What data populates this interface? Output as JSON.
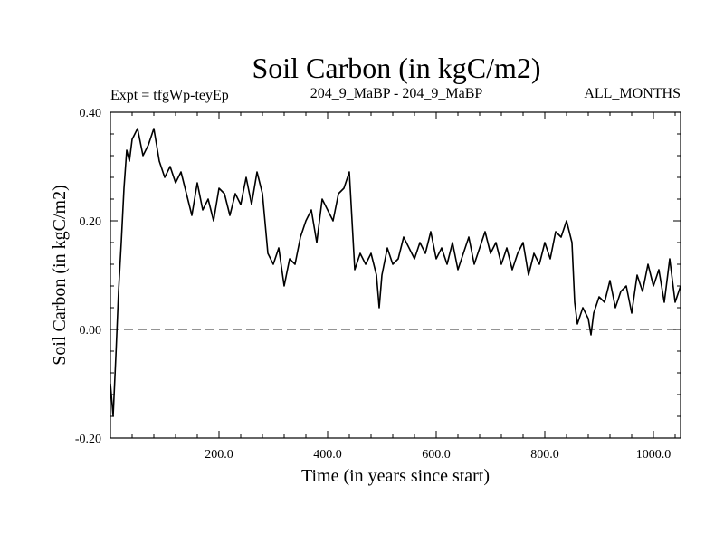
{
  "chart_data": {
    "type": "line",
    "title": "Soil Carbon (in kgC/m2)",
    "subtitle_left": "Expt = tfgWp-teyEp",
    "subtitle_center": "204_9_MaBP - 204_9_MaBP",
    "subtitle_right": "ALL_MONTHS",
    "xlabel": "Time (in years since start)",
    "ylabel": "Soil Carbon (in kgC/m2)",
    "xlim": [
      0,
      1050
    ],
    "ylim": [
      -0.2,
      0.4
    ],
    "x_ticks": [
      200,
      400,
      600,
      800,
      1000
    ],
    "x_tick_labels": [
      "200.0",
      "400.0",
      "600.0",
      "800.0",
      "1000.0"
    ],
    "y_ticks": [
      -0.2,
      0.0,
      0.2,
      0.4
    ],
    "y_tick_labels": [
      "-0.20",
      "0.00",
      "0.20",
      "0.40"
    ],
    "reference_line": 0.0,
    "grid": false,
    "series": [
      {
        "name": "Soil Carbon",
        "color": "#000000",
        "x": [
          0,
          5,
          10,
          15,
          20,
          25,
          30,
          35,
          40,
          50,
          60,
          70,
          80,
          90,
          100,
          110,
          120,
          130,
          140,
          150,
          160,
          170,
          180,
          190,
          200,
          210,
          220,
          230,
          240,
          250,
          260,
          270,
          280,
          290,
          300,
          310,
          320,
          330,
          340,
          350,
          360,
          370,
          380,
          390,
          400,
          410,
          420,
          430,
          440,
          450,
          460,
          470,
          480,
          490,
          495,
          500,
          510,
          520,
          530,
          540,
          550,
          560,
          570,
          580,
          590,
          600,
          610,
          620,
          630,
          640,
          650,
          660,
          670,
          680,
          690,
          700,
          710,
          720,
          730,
          740,
          750,
          760,
          770,
          780,
          790,
          800,
          810,
          820,
          830,
          840,
          850,
          855,
          860,
          870,
          880,
          885,
          890,
          900,
          910,
          920,
          930,
          940,
          950,
          960,
          970,
          980,
          990,
          1000,
          1010,
          1020,
          1030,
          1040,
          1050
        ],
        "values": [
          -0.1,
          -0.16,
          -0.05,
          0.07,
          0.16,
          0.26,
          0.33,
          0.31,
          0.35,
          0.37,
          0.32,
          0.34,
          0.37,
          0.31,
          0.28,
          0.3,
          0.27,
          0.29,
          0.25,
          0.21,
          0.27,
          0.22,
          0.24,
          0.2,
          0.26,
          0.25,
          0.21,
          0.25,
          0.23,
          0.28,
          0.23,
          0.29,
          0.25,
          0.14,
          0.12,
          0.15,
          0.08,
          0.13,
          0.12,
          0.17,
          0.2,
          0.22,
          0.16,
          0.24,
          0.22,
          0.2,
          0.25,
          0.26,
          0.29,
          0.11,
          0.14,
          0.12,
          0.14,
          0.1,
          0.04,
          0.1,
          0.15,
          0.12,
          0.13,
          0.17,
          0.15,
          0.13,
          0.16,
          0.14,
          0.18,
          0.13,
          0.15,
          0.12,
          0.16,
          0.11,
          0.14,
          0.17,
          0.12,
          0.15,
          0.18,
          0.14,
          0.16,
          0.12,
          0.15,
          0.11,
          0.14,
          0.16,
          0.1,
          0.14,
          0.12,
          0.16,
          0.13,
          0.18,
          0.17,
          0.2,
          0.16,
          0.05,
          0.01,
          0.04,
          0.02,
          -0.01,
          0.03,
          0.06,
          0.05,
          0.09,
          0.04,
          0.07,
          0.08,
          0.03,
          0.1,
          0.07,
          0.12,
          0.08,
          0.11,
          0.05,
          0.13,
          0.05,
          0.08
        ]
      }
    ]
  }
}
